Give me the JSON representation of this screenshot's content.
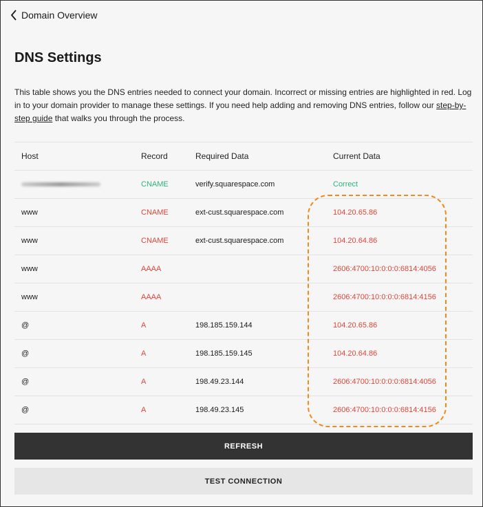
{
  "nav": {
    "back_label": "Domain Overview",
    "back_icon": "chevron-left-icon"
  },
  "title": "DNS Settings",
  "description": {
    "text": "This table shows you the DNS entries needed to connect your domain. Incorrect or missing entries are highlighted in red. Log in to your domain provider to manage these settings. If you need help adding and removing DNS entries, follow our ",
    "link": "step-by-step guide",
    "after": " that walks you through the process."
  },
  "colors": {
    "ok": "#2bb37f",
    "error": "#e0453a",
    "highlight": "#f08a1c"
  },
  "table": {
    "headers": [
      "Host",
      "Record",
      "Required Data",
      "Current Data"
    ],
    "rows": [
      {
        "host": "",
        "host_redacted": true,
        "record": "CNAME",
        "required": "verify.squarespace.com",
        "current": "Correct",
        "status": "ok"
      },
      {
        "host": "www",
        "record": "CNAME",
        "required": "ext-cust.squarespace.com",
        "current": "104.20.65.86",
        "status": "error"
      },
      {
        "host": "www",
        "record": "CNAME",
        "required": "ext-cust.squarespace.com",
        "current": "104.20.64.86",
        "status": "error"
      },
      {
        "host": "www",
        "record": "AAAA",
        "required": "",
        "current": "2606:4700:10:0:0:0:6814:4056",
        "status": "error"
      },
      {
        "host": "www",
        "record": "AAAA",
        "required": "",
        "current": "2606:4700:10:0:0:0:6814:4156",
        "status": "error"
      },
      {
        "host": "@",
        "record": "A",
        "required": "198.185.159.144",
        "current": "104.20.65.86",
        "status": "error"
      },
      {
        "host": "@",
        "record": "A",
        "required": "198.185.159.145",
        "current": "104.20.64.86",
        "status": "error"
      },
      {
        "host": "@",
        "record": "A",
        "required": "198.49.23.144",
        "current": "2606:4700:10:0:0:0:6814:4056",
        "status": "error"
      },
      {
        "host": "@",
        "record": "A",
        "required": "198.49.23.145",
        "current": "2606:4700:10:0:0:0:6814:4156",
        "status": "error"
      }
    ]
  },
  "buttons": {
    "refresh": "REFRESH",
    "test": "TEST CONNECTION"
  }
}
